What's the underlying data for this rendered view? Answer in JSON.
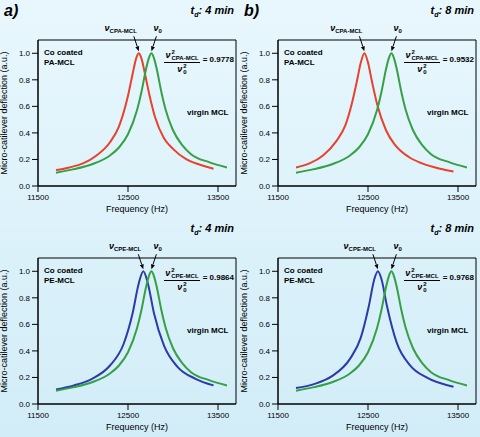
{
  "chart_data": [
    {
      "type": "line",
      "panel": "a)",
      "time_label": {
        "symbol": "t",
        "subscript": "d",
        "text": ": 4 min"
      },
      "x_label": "Frequency (Hz)",
      "y_label": "Micro-catilever deflection (a.u.)",
      "xlim": [
        11500,
        13700
      ],
      "xticks": [
        11500,
        12500,
        13500
      ],
      "ylim": [
        0,
        1.1
      ],
      "yticks": [
        {
          "value": 0,
          "label": "0.0"
        },
        0.2,
        0.4,
        0.6,
        0.8,
        {
          "value": 1,
          "label": "1.0"
        }
      ],
      "grid": false,
      "series": [
        {
          "name": "Co coated PA-MCL",
          "color": "#e8412c",
          "x": [
            11700,
            11850,
            12000,
            12150,
            12300,
            12400,
            12500,
            12550,
            12590,
            12620,
            12650,
            12690,
            12740,
            12800,
            12900,
            13000,
            13150,
            13300,
            13450
          ],
          "values": [
            0.12,
            0.14,
            0.17,
            0.23,
            0.33,
            0.45,
            0.68,
            0.84,
            0.96,
            1.0,
            0.96,
            0.84,
            0.68,
            0.52,
            0.36,
            0.28,
            0.2,
            0.16,
            0.13
          ]
        },
        {
          "name": "virgin MCL",
          "color": "#35a046",
          "x": [
            11700,
            11900,
            12100,
            12300,
            12400,
            12500,
            12600,
            12650,
            12700,
            12730,
            12760,
            12790,
            12820,
            12870,
            12920,
            13000,
            13100,
            13200,
            13400,
            13600
          ],
          "values": [
            0.1,
            0.127,
            0.164,
            0.23,
            0.29,
            0.39,
            0.57,
            0.71,
            0.88,
            0.96,
            1.0,
            0.96,
            0.88,
            0.71,
            0.57,
            0.42,
            0.31,
            0.24,
            0.18,
            0.14
          ]
        }
      ],
      "peak_labels": [
        {
          "symbol": "ν",
          "subscript": "CPA-MCL"
        },
        {
          "symbol": "ν",
          "subscript": "0"
        }
      ],
      "ratio": {
        "symbol": "ν",
        "power": 2,
        "numerator_subscript": "CPA-MCL",
        "denominator_subscript": "0",
        "relation": "=",
        "value": 0.9778
      }
    },
    {
      "type": "line",
      "panel": "b)",
      "time_label": {
        "symbol": "t",
        "subscript": "d",
        "text": ": 8 min"
      },
      "x_label": "Frequency (Hz)",
      "y_label": "Micro-catilever deflection (a.u.)",
      "xlim": [
        11500,
        13700
      ],
      "xticks": [
        11500,
        12500,
        13500
      ],
      "ylim": [
        0,
        1.1
      ],
      "yticks": [
        {
          "value": 0,
          "label": "0.0"
        },
        0.2,
        0.4,
        0.6,
        0.8,
        {
          "value": 1,
          "label": "1.0"
        }
      ],
      "grid": false,
      "series": [
        {
          "name": "Co coated PA-MCL",
          "color": "#e8412c",
          "x": [
            11700,
            11850,
            12000,
            12150,
            12250,
            12320,
            12380,
            12420,
            12460,
            12500,
            12540,
            12600,
            12700,
            12800,
            12950,
            13100,
            13300,
            13450
          ],
          "values": [
            0.14,
            0.17,
            0.23,
            0.34,
            0.46,
            0.62,
            0.8,
            0.93,
            1.0,
            0.93,
            0.8,
            0.62,
            0.42,
            0.31,
            0.22,
            0.17,
            0.13,
            0.11
          ]
        },
        {
          "name": "virgin MCL",
          "color": "#35a046",
          "x": [
            11700,
            11900,
            12100,
            12300,
            12400,
            12500,
            12600,
            12650,
            12700,
            12730,
            12760,
            12790,
            12820,
            12870,
            12920,
            13000,
            13100,
            13200,
            13400,
            13600
          ],
          "values": [
            0.1,
            0.127,
            0.164,
            0.23,
            0.29,
            0.39,
            0.57,
            0.71,
            0.88,
            0.96,
            1.0,
            0.96,
            0.88,
            0.71,
            0.57,
            0.42,
            0.31,
            0.24,
            0.18,
            0.14
          ]
        }
      ],
      "peak_labels": [
        {
          "symbol": "ν",
          "subscript": "CPA-MCL"
        },
        {
          "symbol": "ν",
          "subscript": "0"
        }
      ],
      "ratio": {
        "symbol": "ν",
        "power": 2,
        "numerator_subscript": "CPA-MCL",
        "denominator_subscript": "0",
        "relation": "=",
        "value": 0.9532
      }
    },
    {
      "type": "line",
      "time_label": {
        "symbol": "t",
        "subscript": "d",
        "text": ": 4 min"
      },
      "x_label": "Frequency (Hz)",
      "y_label": "Micro-catilever deflection (a.u.)",
      "xlim": [
        11500,
        13700
      ],
      "xticks": [
        11500,
        12500,
        13500
      ],
      "ylim": [
        0,
        1.1
      ],
      "yticks": [
        {
          "value": 0,
          "label": "0.0"
        },
        0.2,
        0.4,
        0.6,
        0.8,
        {
          "value": 1,
          "label": "1.0"
        }
      ],
      "grid": false,
      "series": [
        {
          "name": "Co coated PE-MCL",
          "color": "#2a3ca8",
          "x": [
            11700,
            11900,
            12100,
            12300,
            12450,
            12550,
            12620,
            12670,
            12720,
            12790,
            12900,
            13050,
            13250,
            13450
          ],
          "values": [
            0.11,
            0.14,
            0.19,
            0.29,
            0.45,
            0.68,
            0.91,
            1.0,
            0.91,
            0.68,
            0.44,
            0.28,
            0.19,
            0.14
          ]
        },
        {
          "name": "virgin MCL",
          "color": "#35a046",
          "x": [
            11700,
            11900,
            12100,
            12300,
            12400,
            12500,
            12600,
            12650,
            12700,
            12730,
            12760,
            12790,
            12820,
            12870,
            12920,
            13000,
            13100,
            13200,
            13400,
            13600
          ],
          "values": [
            0.1,
            0.127,
            0.164,
            0.23,
            0.29,
            0.39,
            0.57,
            0.71,
            0.88,
            0.96,
            1.0,
            0.96,
            0.88,
            0.71,
            0.57,
            0.42,
            0.31,
            0.24,
            0.18,
            0.14
          ]
        }
      ],
      "peak_labels": [
        {
          "symbol": "ν",
          "subscript": "CPE-MCL"
        },
        {
          "symbol": "ν",
          "subscript": "0"
        }
      ],
      "ratio": {
        "symbol": "ν",
        "power": 2,
        "numerator_subscript": "CPE-MCL",
        "denominator_subscript": "0",
        "relation": "=",
        "value": 0.9864
      }
    },
    {
      "type": "line",
      "time_label": {
        "symbol": "t",
        "subscript": "d",
        "text": ": 8 min"
      },
      "x_label": "Frequency (Hz)",
      "y_label": "Micro-catilever deflection (a.u.)",
      "xlim": [
        11500,
        13700
      ],
      "xticks": [
        11500,
        12500,
        13500
      ],
      "ylim": [
        0,
        1.1
      ],
      "yticks": [
        {
          "value": 0,
          "label": "0.0"
        },
        0.2,
        0.4,
        0.6,
        0.8,
        {
          "value": 1,
          "label": "1.0"
        }
      ],
      "grid": false,
      "series": [
        {
          "name": "Co coated PE-MCL",
          "color": "#2a3ca8",
          "x": [
            11700,
            11900,
            12100,
            12300,
            12420,
            12510,
            12570,
            12610,
            12650,
            12710,
            12820,
            12970,
            13150,
            13450
          ],
          "values": [
            0.12,
            0.15,
            0.21,
            0.34,
            0.5,
            0.74,
            0.94,
            1.0,
            0.94,
            0.74,
            0.46,
            0.29,
            0.2,
            0.13
          ]
        },
        {
          "name": "virgin MCL",
          "color": "#35a046",
          "x": [
            11700,
            11900,
            12100,
            12300,
            12400,
            12500,
            12600,
            12650,
            12700,
            12730,
            12760,
            12790,
            12820,
            12870,
            12920,
            13000,
            13100,
            13200,
            13400,
            13600
          ],
          "values": [
            0.1,
            0.127,
            0.164,
            0.23,
            0.29,
            0.39,
            0.57,
            0.71,
            0.88,
            0.96,
            1.0,
            0.96,
            0.88,
            0.71,
            0.57,
            0.42,
            0.31,
            0.24,
            0.18,
            0.14
          ]
        }
      ],
      "peak_labels": [
        {
          "symbol": "ν",
          "subscript": "CPE-MCL"
        },
        {
          "symbol": "ν",
          "subscript": "0"
        }
      ],
      "ratio": {
        "symbol": "ν",
        "power": 2,
        "numerator_subscript": "CPE-MCL",
        "denominator_subscript": "0",
        "relation": "=",
        "value": 0.9768
      }
    }
  ]
}
